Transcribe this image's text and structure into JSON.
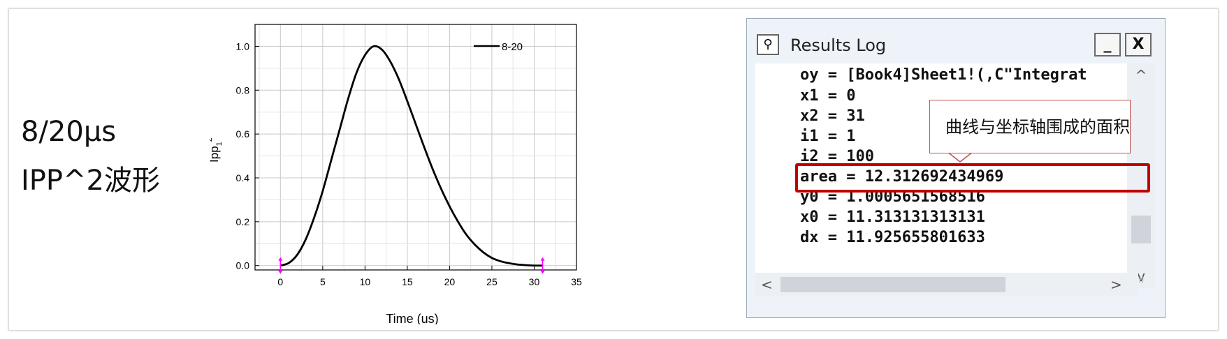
{
  "slide": {
    "title_line1": "8/20μs",
    "title_line2": "IPP^2波形"
  },
  "chart_data": {
    "type": "line",
    "xlabel": "Time (us)",
    "ylabel_base": "Ipp",
    "ylabel_sub": "1",
    "ylabel_sup": "2",
    "xlim": [
      -3,
      35
    ],
    "ylim": [
      -0.02,
      1.1
    ],
    "xticks": [
      0,
      5,
      10,
      15,
      20,
      25,
      30,
      35
    ],
    "yticks": [
      0.0,
      0.2,
      0.4,
      0.6,
      0.8,
      1.0
    ],
    "xtick_labels": [
      "0",
      "5",
      "10",
      "15",
      "20",
      "25",
      "30",
      "35"
    ],
    "ytick_labels": [
      "0.0",
      "0.2",
      "0.4",
      "0.6",
      "0.8",
      "1.0"
    ],
    "grid": true,
    "legend_position": "top-right",
    "series": [
      {
        "name": "8-20",
        "color": "#000000",
        "x": [
          0,
          1,
          2,
          3,
          4,
          5,
          6,
          7,
          8,
          9,
          10,
          11,
          12,
          13,
          14,
          15,
          16,
          17,
          18,
          19,
          20,
          21,
          22,
          23,
          24,
          25,
          26,
          27,
          28,
          29,
          30,
          31
        ],
        "y": [
          0.0,
          0.012,
          0.05,
          0.12,
          0.22,
          0.34,
          0.48,
          0.62,
          0.76,
          0.88,
          0.96,
          1.0,
          0.985,
          0.93,
          0.85,
          0.75,
          0.645,
          0.54,
          0.44,
          0.35,
          0.27,
          0.2,
          0.14,
          0.095,
          0.06,
          0.035,
          0.02,
          0.011,
          0.005,
          0.002,
          0.0,
          0.0
        ]
      }
    ],
    "markers": [
      {
        "x": 0,
        "color": "#ff00ff"
      },
      {
        "x": 31,
        "color": "#ff00ff"
      }
    ]
  },
  "results_log": {
    "title": "Results Log",
    "icon": "results-log-icon",
    "minimize_label": "_",
    "close_label": "X",
    "lines": [
      "oy = [Book4]Sheet1!(,C\"Integrat",
      "x1 = 0",
      "x2 = 31",
      "i1 = 1",
      "i2 = 100",
      "area = 12.312692434969",
      "y0 = 1.0005651568516",
      "x0 = 11.313131313131",
      "dx = 11.925655801633"
    ],
    "scroll_up": "^",
    "scroll_down": "v",
    "scroll_left": "<",
    "scroll_right": ">"
  },
  "callout": {
    "text": "曲线与坐标轴围成的面积",
    "border_color": "#c0504d"
  },
  "highlight": {
    "color": "#c00000"
  }
}
